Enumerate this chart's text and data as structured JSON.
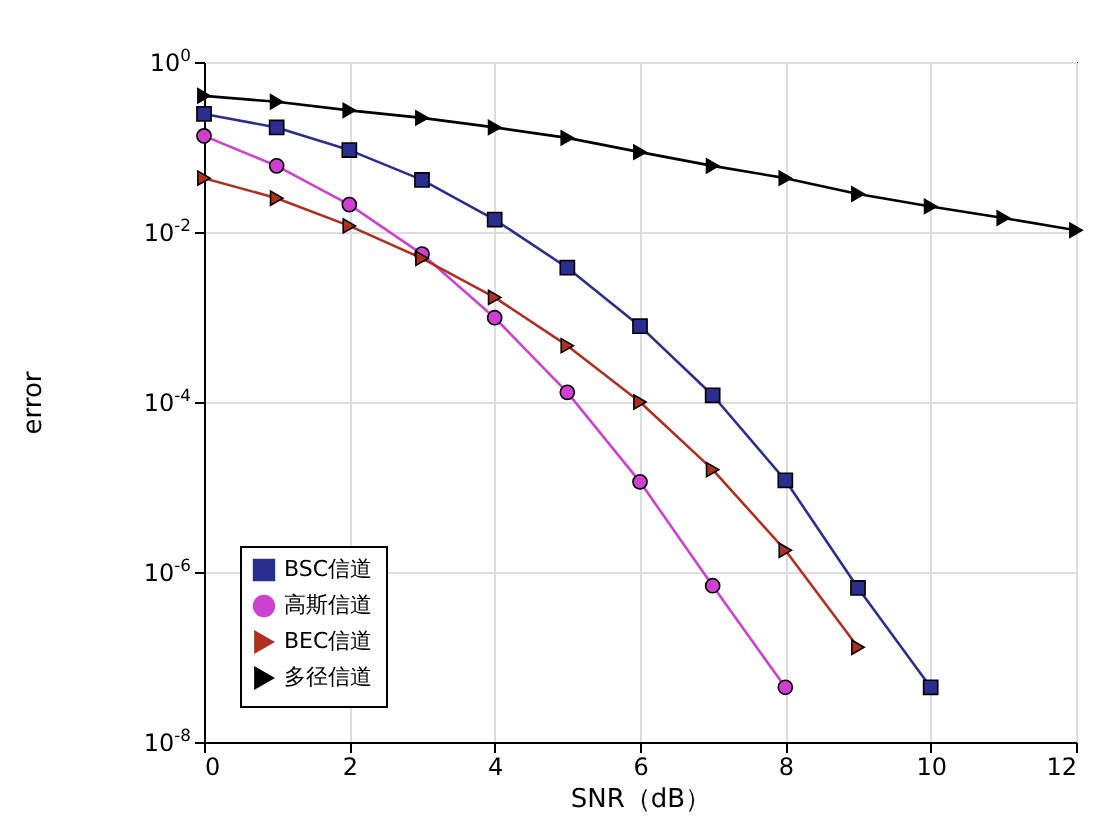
{
  "chart_data": {
    "type": "line",
    "xlabel": "SNR（dB）",
    "ylabel": "error",
    "log": "y",
    "grid": true,
    "legend": "bottom left",
    "xlim": [
      0,
      12
    ],
    "xticks": [
      0,
      2,
      4,
      6,
      8,
      10,
      12
    ],
    "ylim": [
      1e-08,
      1
    ],
    "yticks": [
      {
        "value": 1,
        "label": "10$^{0}$"
      },
      {
        "value": 0.01,
        "label": "10$^{-2}$"
      },
      {
        "value": 0.0001,
        "label": "10$^{-4}$"
      },
      {
        "value": 1e-06,
        "label": "10$^{-6}$"
      },
      {
        "value": 1e-08,
        "label": "10$^{-8}$"
      }
    ],
    "series": [
      {
        "name": "BSC信道",
        "color": "#2a2f8f",
        "marker": "square",
        "x": [
          0,
          1,
          2,
          3,
          4,
          5,
          6,
          7,
          8,
          9,
          10
        ],
        "values": [
          0.245,
          0.17,
          0.092,
          0.041,
          0.014,
          0.0038,
          0.00078,
          0.00012,
          1.2e-05,
          6.5e-07,
          4.4e-08
        ]
      },
      {
        "name": "高斯信道",
        "color": "#d040d0",
        "marker": "circle",
        "x": [
          0,
          1,
          2,
          3,
          4,
          5,
          6,
          7,
          8
        ],
        "values": [
          0.135,
          0.06,
          0.021,
          0.0055,
          0.00098,
          0.00013,
          1.15e-05,
          6.9e-07,
          4.4e-08
        ]
      },
      {
        "name": "BEC信道",
        "color": "#b03020",
        "marker": "triangle",
        "x": [
          0,
          1,
          2,
          3,
          4,
          5,
          6,
          7,
          8,
          9
        ],
        "values": [
          0.043,
          0.025,
          0.0118,
          0.0049,
          0.0017,
          0.00046,
          0.0001,
          1.6e-05,
          1.8e-06,
          1.3e-07
        ]
      },
      {
        "name": "多径信道",
        "color": "#000000",
        "marker": "triangle",
        "x": [
          0,
          1,
          2,
          3,
          4,
          5,
          6,
          7,
          8,
          9,
          10,
          11,
          12
        ],
        "values": [
          0.4,
          0.34,
          0.27,
          0.22,
          0.17,
          0.128,
          0.087,
          0.06,
          0.043,
          0.028,
          0.02,
          0.0146,
          0.0105
        ]
      }
    ]
  }
}
